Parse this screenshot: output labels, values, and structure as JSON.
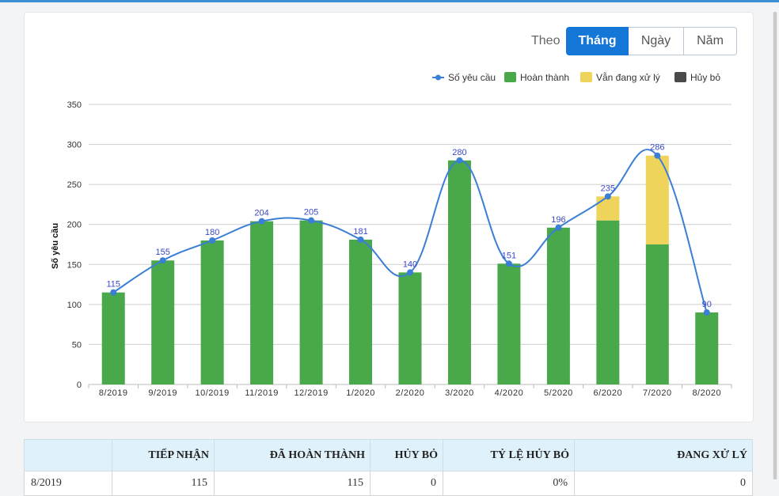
{
  "filter": {
    "label": "Theo",
    "options": [
      "Tháng",
      "Ngày",
      "Năm"
    ],
    "active_index": 0
  },
  "colors": {
    "line": "#3a7fd5",
    "completed": "#48a84a",
    "processing": "#eed45a",
    "canceled": "#4a4a4a",
    "header_bg": "#dff2fb"
  },
  "chart_data": {
    "type": "bar",
    "ylabel": "Số yêu cầu",
    "xlabel": "",
    "ylim": [
      0,
      350
    ],
    "yticks": [
      0,
      50,
      100,
      150,
      200,
      250,
      300,
      350
    ],
    "grid": true,
    "legend_position": "top-right",
    "categories": [
      "8/2019",
      "9/2019",
      "10/2019",
      "11/2019",
      "12/2019",
      "1/2020",
      "2/2020",
      "3/2020",
      "4/2020",
      "5/2020",
      "6/2020",
      "7/2020",
      "8/2020"
    ],
    "series": [
      {
        "name": "Số yêu cầu",
        "kind": "line",
        "values": [
          115,
          155,
          180,
          204,
          205,
          181,
          140,
          280,
          151,
          196,
          235,
          286,
          90
        ]
      },
      {
        "name": "Hoàn thành",
        "kind": "bar",
        "values": [
          115,
          155,
          180,
          204,
          205,
          181,
          140,
          280,
          151,
          196,
          205,
          175,
          90
        ]
      },
      {
        "name": "Vẫn đang xử lý",
        "kind": "bar",
        "values": [
          0,
          0,
          0,
          0,
          0,
          0,
          0,
          0,
          0,
          0,
          30,
          111,
          0
        ]
      },
      {
        "name": "Hủy bỏ",
        "kind": "bar",
        "values": [
          0,
          0,
          0,
          0,
          0,
          0,
          0,
          0,
          0,
          0,
          0,
          0,
          0
        ]
      }
    ]
  },
  "table": {
    "headers": [
      "",
      "TIẾP NHẬN",
      "ĐÃ HOÀN THÀNH",
      "HỦY BỎ",
      "TỶ LỆ HỦY BỎ",
      "ĐANG XỬ LÝ"
    ],
    "rows": [
      [
        "8/2019",
        "115",
        "115",
        "0",
        "0%",
        "0"
      ]
    ]
  }
}
